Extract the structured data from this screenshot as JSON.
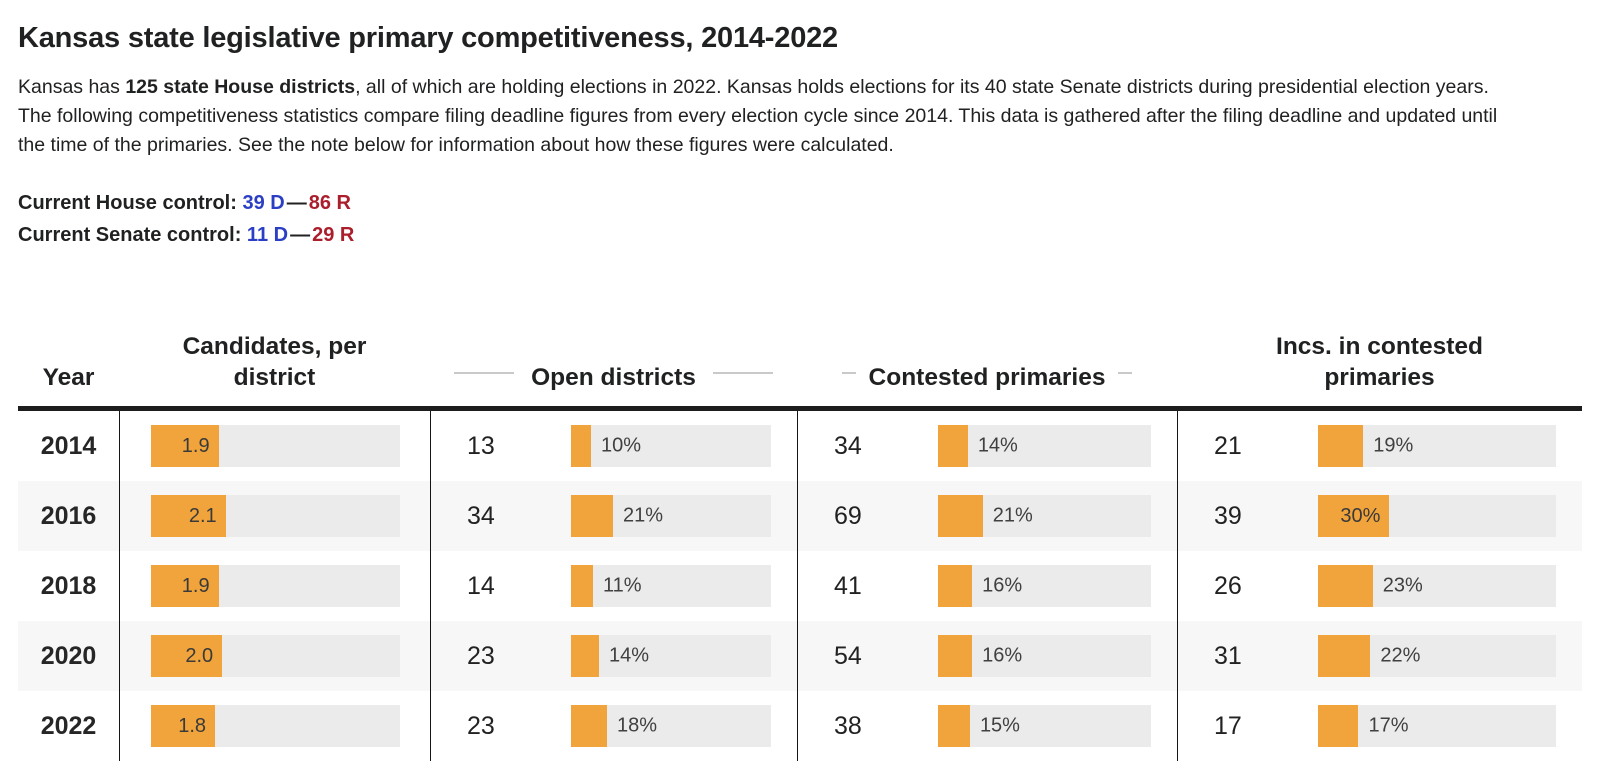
{
  "title": "Kansas state legislative primary competitiveness, 2014-2022",
  "intro": {
    "text_before": "Kansas has ",
    "text_bold": "125 state House districts",
    "text_after": ", all of which are holding elections in 2022. Kansas holds elections for its 40 state Senate districts during presidential election years. The following competitiveness statistics compare filing deadline figures from every election cycle since 2014. This data is gathered after the filing deadline and updated until the time of the primaries. See the note below for information about how these figures were calculated."
  },
  "control": {
    "house_label": "Current House control:",
    "house_dem": "39 D",
    "separator": "—",
    "house_rep": "86 R",
    "senate_label": "Current Senate control:",
    "senate_dem": "11 D",
    "senate_rep": "29 R"
  },
  "colors": {
    "dem_blue": "#2b3fc4",
    "rep_red": "#ab1e2c",
    "bar_fill_orange": "#f0a43b",
    "bar_track_gray": "#ebebeb",
    "row_alt_gray": "#f7f7f7"
  },
  "table": {
    "headers": {
      "year": "Year",
      "candidates": "Candidates, per district",
      "open": "Open districts",
      "contested": "Contested primaries",
      "incs": "Incs. in contested primaries"
    },
    "candidates_bar_max": 7,
    "inside_label_threshold_pct": 28,
    "rows": [
      {
        "year": "2014",
        "candidates_per_district": 1.9,
        "open_districts": {
          "count": 13,
          "pct": 10
        },
        "contested_primaries": {
          "count": 34,
          "pct": 14
        },
        "incs_in_contested": {
          "count": 21,
          "pct": 19
        }
      },
      {
        "year": "2016",
        "candidates_per_district": 2.1,
        "open_districts": {
          "count": 34,
          "pct": 21
        },
        "contested_primaries": {
          "count": 69,
          "pct": 21
        },
        "incs_in_contested": {
          "count": 39,
          "pct": 30
        }
      },
      {
        "year": "2018",
        "candidates_per_district": 1.9,
        "open_districts": {
          "count": 14,
          "pct": 11
        },
        "contested_primaries": {
          "count": 41,
          "pct": 16
        },
        "incs_in_contested": {
          "count": 26,
          "pct": 23
        }
      },
      {
        "year": "2020",
        "candidates_per_district": 2.0,
        "open_districts": {
          "count": 23,
          "pct": 14
        },
        "contested_primaries": {
          "count": 54,
          "pct": 16
        },
        "incs_in_contested": {
          "count": 31,
          "pct": 22
        }
      },
      {
        "year": "2022",
        "candidates_per_district": 1.8,
        "open_districts": {
          "count": 23,
          "pct": 18
        },
        "contested_primaries": {
          "count": 38,
          "pct": 15
        },
        "incs_in_contested": {
          "count": 17,
          "pct": 17
        }
      }
    ]
  },
  "chart_data": {
    "type": "table",
    "title": "Kansas state legislative primary competitiveness, 2014-2022",
    "categories": [
      "2014",
      "2016",
      "2018",
      "2020",
      "2022"
    ],
    "series": [
      {
        "name": "Candidates, per district",
        "values": [
          1.9,
          2.1,
          1.9,
          2.0,
          1.8
        ]
      },
      {
        "name": "Open districts (count)",
        "values": [
          13,
          34,
          14,
          23,
          23
        ]
      },
      {
        "name": "Open districts (pct)",
        "values": [
          10,
          21,
          11,
          14,
          18
        ]
      },
      {
        "name": "Contested primaries (count)",
        "values": [
          34,
          69,
          41,
          54,
          38
        ]
      },
      {
        "name": "Contested primaries (pct)",
        "values": [
          14,
          21,
          16,
          16,
          15
        ]
      },
      {
        "name": "Incs. in contested primaries (count)",
        "values": [
          21,
          39,
          26,
          31,
          17
        ]
      },
      {
        "name": "Incs. in contested primaries (pct)",
        "values": [
          19,
          30,
          23,
          22,
          17
        ]
      }
    ],
    "bar_color": "#f0a43b",
    "layout": "horizontal inline bars on light gray tracks; percent bars scaled 0-100 of track; candidate bars scaled 0-7; legend none; grid off"
  }
}
